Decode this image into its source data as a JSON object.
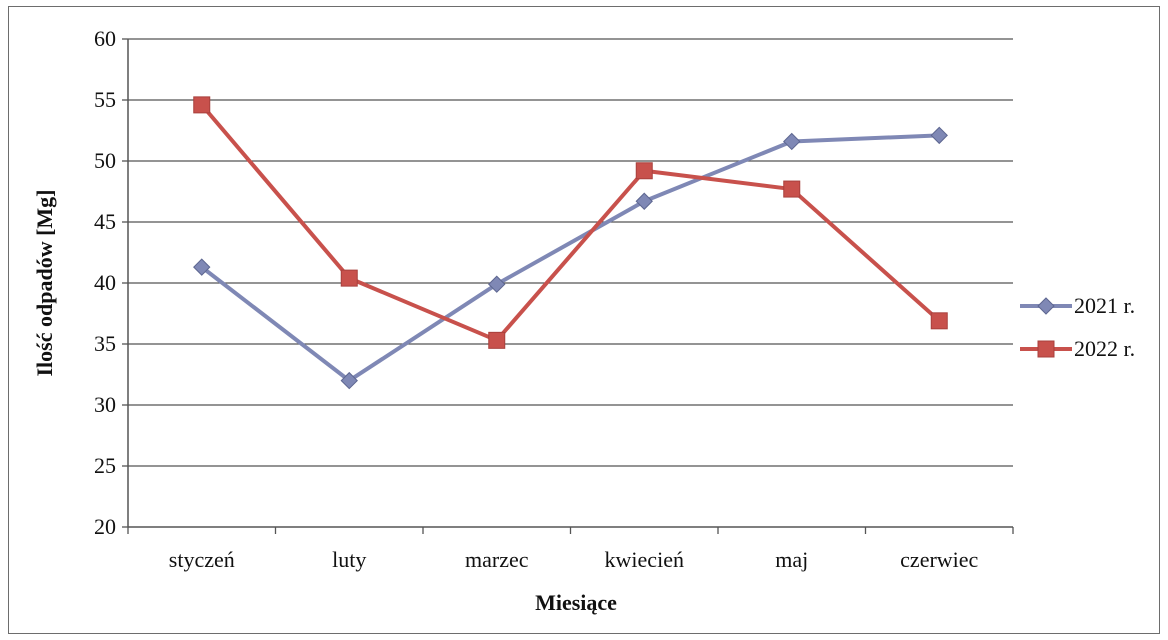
{
  "chart_data": {
    "type": "line",
    "title": "",
    "xlabel": "Miesiące",
    "ylabel": "Ilość odpadów [Mg]",
    "categories": [
      "styczeń",
      "luty",
      "marzec",
      "kwiecień",
      "maj",
      "czerwiec"
    ],
    "ylim": [
      20,
      60
    ],
    "yticks": [
      20,
      25,
      30,
      35,
      40,
      45,
      50,
      55,
      60
    ],
    "grid": true,
    "legend_position": "right",
    "series": [
      {
        "name": "2021 r.",
        "color": "#7f88b5",
        "marker": "diamond",
        "values": [
          41.3,
          32.0,
          39.9,
          46.7,
          51.6,
          52.1
        ]
      },
      {
        "name": "2022 r.",
        "color": "#c8514c",
        "marker": "square",
        "values": [
          54.6,
          40.4,
          35.3,
          49.2,
          47.7,
          36.9
        ]
      }
    ]
  }
}
